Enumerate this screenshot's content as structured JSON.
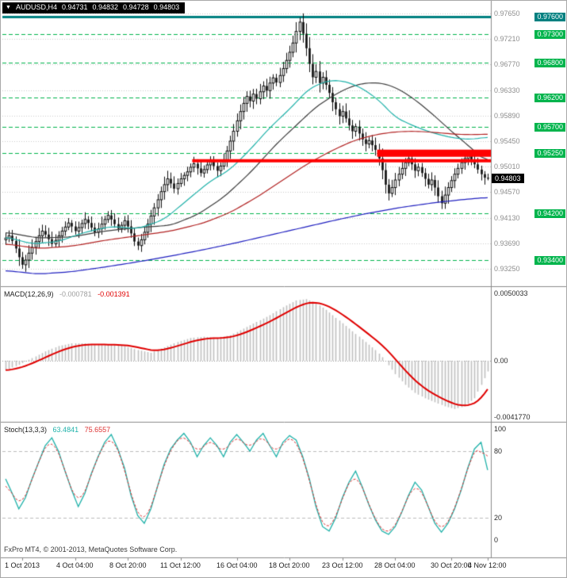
{
  "header": {
    "marker": "▼",
    "symbol": "AUDUSD,H4",
    "open": "0.94731",
    "high": "0.94832",
    "low": "0.94728",
    "close": "0.94803"
  },
  "colors": {
    "grid": "#cbcbcb",
    "level_green": "#00b44c",
    "level_teal": "#008080",
    "resistance_red": "#ff0000",
    "candle": "#101010",
    "ma_black": "#3c3c3c",
    "ma_teal": "#20b2aa",
    "ma_red": "#b22222",
    "ma_blue": "#2020c0",
    "macd_hist": "#c0c0c0",
    "macd_signal": "#e00000",
    "stoch_main": "#20b2aa",
    "stoch_signal": "#dd3333",
    "current_badge_bg": "#000000"
  },
  "price_scale": {
    "gray_ticks": [
      "0.97650",
      "0.97210",
      "0.96770",
      "0.96330",
      "0.95890",
      "0.95450",
      "0.95010",
      "0.94570",
      "0.94130",
      "0.93690",
      "0.93250"
    ],
    "current": {
      "label": "0.94803",
      "price": 0.94803
    }
  },
  "macd_header": {
    "name": "MACD(12,26,9)",
    "main_value": "-0.000781",
    "signal_value": "-0.001391"
  },
  "stoch_header": {
    "name": "Stoch(13,3,3)",
    "main_value": "63.4841",
    "signal_value": "75.6557"
  },
  "macd_scale": [
    "0.0050033",
    "0.00",
    "-0.0041770"
  ],
  "stoch_scale": [
    "100",
    "80",
    "20",
    "0"
  ],
  "footer": {
    "copyright": "FxPro MT4, © 2001-2013, MetaQuotes Software Corp."
  },
  "xaxis": {
    "labels": [
      {
        "text": "1 Oct 2013",
        "bar": 5
      },
      {
        "text": "4 Oct 04:00",
        "bar": 21
      },
      {
        "text": "8 Oct 20:00",
        "bar": 37
      },
      {
        "text": "11 Oct 12:00",
        "bar": 53
      },
      {
        "text": "16 Oct 04:00",
        "bar": 70
      },
      {
        "text": "18 Oct 20:00",
        "bar": 86
      },
      {
        "text": "23 Oct 12:00",
        "bar": 102
      },
      {
        "text": "28 Oct 04:00",
        "bar": 118
      },
      {
        "text": "30 Oct 20:00",
        "bar": 135
      },
      {
        "text": "4 Nov 12:00",
        "bar": 146
      }
    ]
  },
  "chart_data": [
    {
      "type": "candlestick",
      "title": "AUDUSD,H4",
      "ylim": [
        0.9295,
        0.9784
      ],
      "grid_base": 0.9325,
      "grid_step": 0.0044,
      "first_open": 0.9375,
      "closes": [
        0.9378,
        0.9382,
        0.9373,
        0.936,
        0.9345,
        0.9332,
        0.934,
        0.9352,
        0.9362,
        0.9372,
        0.9382,
        0.939,
        0.9384,
        0.9376,
        0.9368,
        0.9374,
        0.9382,
        0.939,
        0.9397,
        0.9404,
        0.9398,
        0.939,
        0.9396,
        0.9403,
        0.941,
        0.9404,
        0.9396,
        0.9388,
        0.9394,
        0.9402,
        0.941,
        0.9417,
        0.941,
        0.9402,
        0.9394,
        0.94,
        0.9408,
        0.9398,
        0.9386,
        0.9372,
        0.9365,
        0.9375,
        0.9388,
        0.9402,
        0.9416,
        0.943,
        0.9444,
        0.9458,
        0.947,
        0.948,
        0.9472,
        0.9463,
        0.9472,
        0.948,
        0.9486,
        0.9492,
        0.95,
        0.9506,
        0.9498,
        0.949,
        0.9496,
        0.9504,
        0.951,
        0.9502,
        0.9494,
        0.9502,
        0.9512,
        0.9528,
        0.9545,
        0.9562,
        0.958,
        0.9596,
        0.961,
        0.9622,
        0.9614,
        0.9626,
        0.9618,
        0.963,
        0.964,
        0.9632,
        0.9645,
        0.9654,
        0.9646,
        0.9658,
        0.967,
        0.9684,
        0.9698,
        0.9714,
        0.9734,
        0.975,
        0.973,
        0.9705,
        0.9678,
        0.9655,
        0.9665,
        0.9645,
        0.9655,
        0.9642,
        0.9628,
        0.9612,
        0.96,
        0.9588,
        0.9596,
        0.9584,
        0.9572,
        0.9562,
        0.957,
        0.9558,
        0.9548,
        0.954,
        0.9546,
        0.9538,
        0.953,
        0.9515,
        0.9495,
        0.947,
        0.9455,
        0.9465,
        0.9478,
        0.9488,
        0.9498,
        0.9508,
        0.9515,
        0.9505,
        0.9494,
        0.95,
        0.949,
        0.948,
        0.947,
        0.9478,
        0.9465,
        0.945,
        0.9438,
        0.9452,
        0.9465,
        0.9477,
        0.9488,
        0.9498,
        0.9508,
        0.9515,
        0.9521,
        0.9513,
        0.9505,
        0.9496,
        0.9488,
        0.9482,
        0.94803
      ],
      "wick_overrides": {
        "5": {
          "low": 0.9325
        },
        "89": {
          "high": 0.9758
        },
        "132": {
          "low": 0.9428
        }
      },
      "levels": [
        {
          "label": "0.97600",
          "price": 0.976,
          "style": "solid",
          "width": 3,
          "color": "#008080"
        },
        {
          "label": "0.97300",
          "price": 0.973,
          "style": "dash",
          "width": 1,
          "color": "#00b44c"
        },
        {
          "label": "0.96800",
          "price": 0.968,
          "style": "dash",
          "width": 1,
          "color": "#00b44c"
        },
        {
          "label": "0.96200",
          "price": 0.962,
          "style": "dash",
          "width": 1,
          "color": "#00b44c"
        },
        {
          "label": "0.95700",
          "price": 0.957,
          "style": "dash",
          "width": 1,
          "color": "#00b44c"
        },
        {
          "label": "0.95250",
          "price": 0.9525,
          "style": "dash",
          "width": 1,
          "color": "#00b44c"
        },
        {
          "label": "0.94200",
          "price": 0.942,
          "style": "dash",
          "width": 1,
          "color": "#00b44c"
        },
        {
          "label": "0.93400",
          "price": 0.934,
          "style": "dash",
          "width": 1,
          "color": "#00b44c"
        }
      ],
      "resistance": [
        {
          "price": 0.9511,
          "from_bar": 57,
          "width": 4
        },
        {
          "price": 0.9524,
          "from_bar": 113,
          "width": 9
        }
      ],
      "moving_averages": [
        {
          "name": "ma-black",
          "color": "#3c3c3c",
          "anchors": [
            [
              0,
              0.9388
            ],
            [
              10,
              0.9378
            ],
            [
              20,
              0.938
            ],
            [
              30,
              0.939
            ],
            [
              40,
              0.9396
            ],
            [
              50,
              0.94
            ],
            [
              58,
              0.9418
            ],
            [
              66,
              0.9448
            ],
            [
              74,
              0.949
            ],
            [
              82,
              0.954
            ],
            [
              88,
              0.9572
            ],
            [
              94,
              0.9604
            ],
            [
              100,
              0.9626
            ],
            [
              105,
              0.964
            ],
            [
              110,
              0.9646
            ],
            [
              115,
              0.9644
            ],
            [
              120,
              0.9632
            ],
            [
              125,
              0.9612
            ],
            [
              130,
              0.9588
            ],
            [
              135,
              0.9562
            ],
            [
              140,
              0.9538
            ],
            [
              146,
              0.9508
            ]
          ]
        },
        {
          "name": "ma-teal",
          "color": "#20b2aa",
          "anchors": [
            [
              0,
              0.938
            ],
            [
              8,
              0.9368
            ],
            [
              16,
              0.9372
            ],
            [
              24,
              0.9388
            ],
            [
              32,
              0.9398
            ],
            [
              40,
              0.9394
            ],
            [
              48,
              0.941
            ],
            [
              56,
              0.9448
            ],
            [
              62,
              0.9476
            ],
            [
              68,
              0.9496
            ],
            [
              74,
              0.953
            ],
            [
              80,
              0.9568
            ],
            [
              86,
              0.96
            ],
            [
              92,
              0.9636
            ],
            [
              98,
              0.965
            ],
            [
              103,
              0.9648
            ],
            [
              108,
              0.9636
            ],
            [
              113,
              0.9616
            ],
            [
              118,
              0.9586
            ],
            [
              124,
              0.957
            ],
            [
              130,
              0.9558
            ],
            [
              136,
              0.955
            ],
            [
              141,
              0.9548
            ],
            [
              146,
              0.9552
            ]
          ]
        },
        {
          "name": "ma-red",
          "color": "#b22222",
          "anchors": [
            [
              0,
              0.9368
            ],
            [
              10,
              0.936
            ],
            [
              20,
              0.9364
            ],
            [
              30,
              0.9374
            ],
            [
              40,
              0.9382
            ],
            [
              50,
              0.939
            ],
            [
              60,
              0.9404
            ],
            [
              68,
              0.9422
            ],
            [
              76,
              0.9448
            ],
            [
              84,
              0.9478
            ],
            [
              92,
              0.9508
            ],
            [
              100,
              0.9532
            ],
            [
              106,
              0.9547
            ],
            [
              112,
              0.9556
            ],
            [
              118,
              0.9561
            ],
            [
              124,
              0.9562
            ],
            [
              130,
              0.956
            ],
            [
              136,
              0.9557
            ],
            [
              141,
              0.9556
            ],
            [
              146,
              0.9557
            ]
          ]
        },
        {
          "name": "ma-blue",
          "color": "#2020c0",
          "anchors": [
            [
              0,
              0.9322
            ],
            [
              10,
              0.9316
            ],
            [
              20,
              0.932
            ],
            [
              30,
              0.9328
            ],
            [
              40,
              0.9337
            ],
            [
              50,
              0.9347
            ],
            [
              60,
              0.9358
            ],
            [
              70,
              0.937
            ],
            [
              80,
              0.9383
            ],
            [
              90,
              0.9396
            ],
            [
              100,
              0.9409
            ],
            [
              110,
              0.9421
            ],
            [
              120,
              0.9431
            ],
            [
              130,
              0.9439
            ],
            [
              138,
              0.9444
            ],
            [
              146,
              0.9448
            ]
          ]
        }
      ]
    },
    {
      "type": "bar",
      "title": "MACD(12,26,9)",
      "current_values": [
        -0.000781,
        -0.001391
      ],
      "ylim": [
        -0.0045,
        0.0054
      ],
      "anchors": [
        [
          0,
          -0.0007
        ],
        [
          4,
          -0.0003
        ],
        [
          8,
          0.0002
        ],
        [
          12,
          0.0007
        ],
        [
          16,
          0.0011
        ],
        [
          20,
          0.0013
        ],
        [
          24,
          0.0013
        ],
        [
          28,
          0.0012
        ],
        [
          32,
          0.0012
        ],
        [
          36,
          0.0011
        ],
        [
          40,
          0.0008
        ],
        [
          44,
          0.0006
        ],
        [
          48,
          0.001
        ],
        [
          52,
          0.0014
        ],
        [
          56,
          0.0017
        ],
        [
          60,
          0.0018
        ],
        [
          64,
          0.0017
        ],
        [
          68,
          0.0019
        ],
        [
          72,
          0.0024
        ],
        [
          76,
          0.0029
        ],
        [
          80,
          0.0034
        ],
        [
          84,
          0.004
        ],
        [
          88,
          0.0045
        ],
        [
          91,
          0.0046
        ],
        [
          94,
          0.0043
        ],
        [
          97,
          0.0038
        ],
        [
          100,
          0.0032
        ],
        [
          103,
          0.0026
        ],
        [
          106,
          0.002
        ],
        [
          109,
          0.0014
        ],
        [
          112,
          0.0008
        ],
        [
          115,
          0.0
        ],
        [
          118,
          -0.001
        ],
        [
          121,
          -0.0018
        ],
        [
          124,
          -0.0024
        ],
        [
          127,
          -0.0028
        ],
        [
          130,
          -0.0031
        ],
        [
          133,
          -0.0034
        ],
        [
          136,
          -0.0036
        ],
        [
          139,
          -0.0034
        ],
        [
          142,
          -0.0028
        ],
        [
          144,
          -0.0018
        ],
        [
          146,
          -0.0008
        ]
      ]
    },
    {
      "type": "line",
      "title": "Stoch(13,3,3)",
      "current_values": [
        63.4841,
        75.6557
      ],
      "ylim": [
        0,
        100
      ],
      "levels": [
        80,
        20
      ],
      "anchors": [
        [
          0,
          55
        ],
        [
          2,
          42
        ],
        [
          4,
          28
        ],
        [
          6,
          38
        ],
        [
          8,
          55
        ],
        [
          10,
          70
        ],
        [
          12,
          85
        ],
        [
          14,
          92
        ],
        [
          16,
          80
        ],
        [
          18,
          62
        ],
        [
          20,
          45
        ],
        [
          22,
          30
        ],
        [
          24,
          42
        ],
        [
          26,
          60
        ],
        [
          28,
          75
        ],
        [
          30,
          88
        ],
        [
          32,
          95
        ],
        [
          34,
          82
        ],
        [
          36,
          65
        ],
        [
          38,
          40
        ],
        [
          40,
          22
        ],
        [
          42,
          15
        ],
        [
          44,
          28
        ],
        [
          46,
          48
        ],
        [
          48,
          68
        ],
        [
          50,
          82
        ],
        [
          52,
          90
        ],
        [
          54,
          96
        ],
        [
          56,
          88
        ],
        [
          58,
          75
        ],
        [
          60,
          85
        ],
        [
          62,
          92
        ],
        [
          64,
          85
        ],
        [
          66,
          75
        ],
        [
          68,
          88
        ],
        [
          70,
          95
        ],
        [
          72,
          88
        ],
        [
          74,
          80
        ],
        [
          76,
          90
        ],
        [
          78,
          96
        ],
        [
          80,
          85
        ],
        [
          82,
          75
        ],
        [
          84,
          88
        ],
        [
          86,
          94
        ],
        [
          88,
          90
        ],
        [
          90,
          75
        ],
        [
          92,
          55
        ],
        [
          94,
          30
        ],
        [
          96,
          12
        ],
        [
          98,
          8
        ],
        [
          100,
          20
        ],
        [
          102,
          38
        ],
        [
          104,
          52
        ],
        [
          106,
          62
        ],
        [
          108,
          48
        ],
        [
          110,
          32
        ],
        [
          112,
          18
        ],
        [
          114,
          8
        ],
        [
          116,
          5
        ],
        [
          118,
          12
        ],
        [
          120,
          25
        ],
        [
          122,
          40
        ],
        [
          124,
          52
        ],
        [
          126,
          45
        ],
        [
          128,
          30
        ],
        [
          130,
          15
        ],
        [
          132,
          7
        ],
        [
          134,
          15
        ],
        [
          136,
          28
        ],
        [
          138,
          45
        ],
        [
          140,
          65
        ],
        [
          142,
          82
        ],
        [
          144,
          88
        ],
        [
          146,
          63
        ]
      ]
    }
  ]
}
